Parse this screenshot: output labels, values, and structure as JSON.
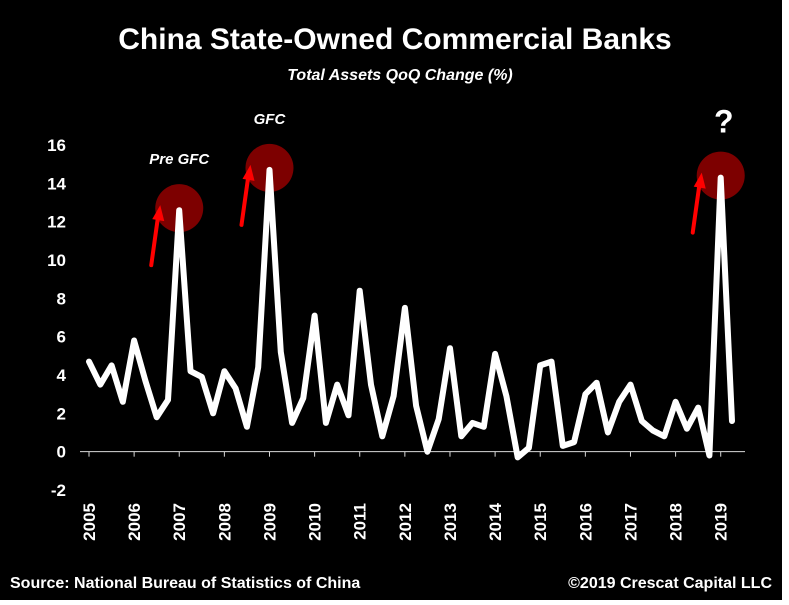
{
  "chart_data": {
    "type": "line",
    "title": "China State-Owned Commercial Banks",
    "subtitle": "Total Assets QoQ Change (%)",
    "xlabel": "",
    "ylabel": "",
    "ylim": [
      -2,
      16
    ],
    "yticks": [
      "16",
      "14",
      "12",
      "10",
      "8",
      "6",
      "4",
      "2",
      "0",
      "-2"
    ],
    "year_labels": [
      "2005",
      "2006",
      "2007",
      "2008",
      "2009",
      "2010",
      "2011",
      "2012",
      "2013",
      "2014",
      "2015",
      "2016",
      "2017",
      "2018",
      "2019"
    ],
    "grid": false,
    "line_color": "#ffffff",
    "highlight_color": "#8b0000",
    "arrow_color": "#ff0000",
    "x": [
      "2005Q1",
      "2005Q2",
      "2005Q3",
      "2005Q4",
      "2006Q1",
      "2006Q2",
      "2006Q3",
      "2006Q4",
      "2007Q1",
      "2007Q2",
      "2007Q3",
      "2007Q4",
      "2008Q1",
      "2008Q2",
      "2008Q3",
      "2008Q4",
      "2009Q1",
      "2009Q2",
      "2009Q3",
      "2009Q4",
      "2010Q1",
      "2010Q2",
      "2010Q3",
      "2010Q4",
      "2011Q1",
      "2011Q2",
      "2011Q3",
      "2011Q4",
      "2012Q1",
      "2012Q2",
      "2012Q3",
      "2012Q4",
      "2013Q1",
      "2013Q2",
      "2013Q3",
      "2013Q4",
      "2014Q1",
      "2014Q2",
      "2014Q3",
      "2014Q4",
      "2015Q1",
      "2015Q2",
      "2015Q3",
      "2015Q4",
      "2016Q1",
      "2016Q2",
      "2016Q3",
      "2016Q4",
      "2017Q1",
      "2017Q2",
      "2017Q3",
      "2017Q4",
      "2018Q1",
      "2018Q2",
      "2018Q3",
      "2018Q4",
      "2019Q1",
      "2019Q2"
    ],
    "series": [
      {
        "values": [
          4.7,
          3.5,
          4.5,
          2.6,
          5.8,
          3.7,
          1.8,
          2.7,
          12.6,
          4.2,
          3.9,
          2.0,
          4.2,
          3.3,
          1.3,
          4.4,
          14.7,
          5.2,
          1.5,
          2.8,
          7.1,
          1.5,
          3.5,
          1.9,
          8.4,
          3.5,
          0.8,
          2.9,
          7.5,
          2.4,
          0.0,
          1.7,
          5.4,
          0.8,
          1.5,
          1.3,
          5.1,
          2.9,
          -0.3,
          0.2,
          4.5,
          4.7,
          0.3,
          0.5,
          3.0,
          3.6,
          1.0,
          2.6,
          3.5,
          1.6,
          1.1,
          0.8,
          2.6,
          1.2,
          2.3,
          -0.2,
          14.3,
          1.6
        ]
      }
    ],
    "annotations": [
      {
        "label": "Pre GFC",
        "x": "2007Q1",
        "y": 12.6
      },
      {
        "label": "GFC",
        "x": "2009Q1",
        "y": 14.7
      },
      {
        "label": "?",
        "x": "2019Q1",
        "y": 14.3
      }
    ]
  },
  "footer": {
    "source": "Source: National Bureau of Statistics of China",
    "copyright": "©2019 Crescat Capital LLC"
  }
}
